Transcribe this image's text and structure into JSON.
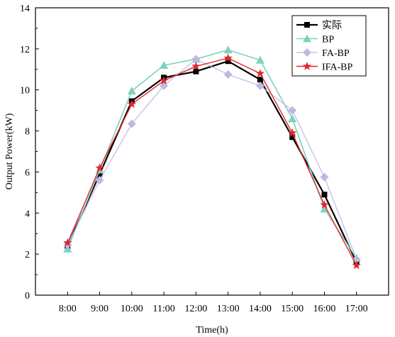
{
  "chart_data": {
    "type": "line",
    "title": "",
    "xlabel": "Time(h)",
    "ylabel": "Output Power(kW)",
    "categories": [
      "8:00",
      "9:00",
      "10:00",
      "11:00",
      "12:00",
      "13:00",
      "14:00",
      "15:00",
      "16:00",
      "17:00"
    ],
    "ylim": [
      0,
      14
    ],
    "yticks": [
      0,
      2,
      4,
      6,
      8,
      10,
      12,
      14
    ],
    "grid": false,
    "legend_position": "top-right",
    "series": [
      {
        "name": "实际",
        "color": "#000000",
        "marker": "square",
        "values": [
          2.4,
          5.9,
          9.45,
          10.6,
          10.9,
          11.4,
          10.5,
          7.7,
          4.9,
          1.6
        ]
      },
      {
        "name": "BP",
        "color": "#7fd1c0",
        "marker": "triangle",
        "values": [
          2.25,
          6.1,
          9.95,
          11.2,
          11.5,
          11.95,
          11.45,
          8.6,
          4.2,
          1.8
        ]
      },
      {
        "name": "FA-BP",
        "color": "#c0b8e4",
        "marker": "diamond",
        "values": [
          2.45,
          5.6,
          8.35,
          10.2,
          11.5,
          10.75,
          10.2,
          9.0,
          5.75,
          1.75
        ]
      },
      {
        "name": "IFA-BP",
        "color": "#e0282e",
        "marker": "star",
        "values": [
          2.55,
          6.2,
          9.3,
          10.45,
          11.15,
          11.55,
          10.8,
          7.9,
          4.4,
          1.45
        ]
      }
    ]
  }
}
